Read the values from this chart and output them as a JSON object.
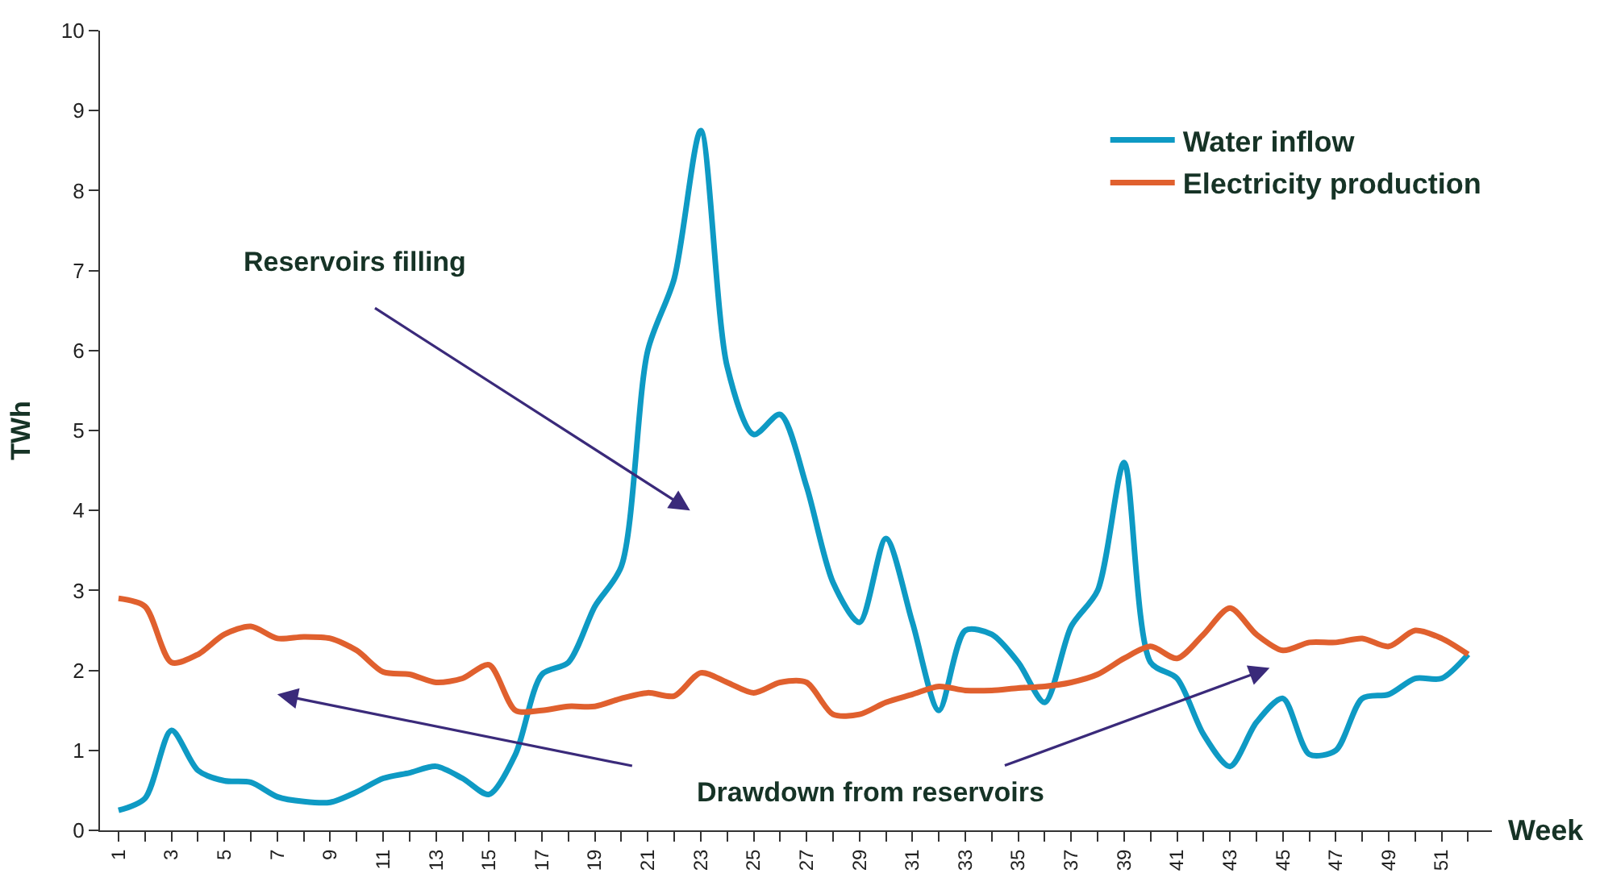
{
  "chart_data": {
    "type": "line",
    "xlabel": "Week",
    "ylabel": "TWh",
    "x": [
      1,
      2,
      3,
      4,
      5,
      6,
      7,
      8,
      9,
      10,
      11,
      12,
      13,
      14,
      15,
      16,
      17,
      18,
      19,
      20,
      21,
      22,
      23,
      24,
      25,
      26,
      27,
      28,
      29,
      30,
      31,
      32,
      33,
      34,
      35,
      36,
      37,
      38,
      39,
      40,
      41,
      42,
      43,
      44,
      45,
      46,
      47,
      48,
      49,
      50,
      51,
      52
    ],
    "xlim": [
      0.3,
      52.9
    ],
    "xticks": [
      1,
      {
        "value": 2,
        "label": null
      },
      3,
      {
        "value": 4,
        "label": null
      },
      5,
      {
        "value": 6,
        "label": null
      },
      7,
      {
        "value": 8,
        "label": null
      },
      9,
      {
        "value": 10,
        "label": null
      },
      11,
      {
        "value": 12,
        "label": null
      },
      13,
      {
        "value": 14,
        "label": null
      },
      15,
      {
        "value": 16,
        "label": null
      },
      17,
      {
        "value": 18,
        "label": null
      },
      19,
      {
        "value": 20,
        "label": null
      },
      21,
      {
        "value": 22,
        "label": null
      },
      23,
      {
        "value": 24,
        "label": null
      },
      25,
      {
        "value": 26,
        "label": null
      },
      27,
      {
        "value": 28,
        "label": null
      },
      29,
      {
        "value": 30,
        "label": null
      },
      31,
      {
        "value": 32,
        "label": null
      },
      33,
      {
        "value": 34,
        "label": null
      },
      35,
      {
        "value": 36,
        "label": null
      },
      37,
      {
        "value": 38,
        "label": null
      },
      39,
      {
        "value": 40,
        "label": null
      },
      41,
      {
        "value": 42,
        "label": null
      },
      43,
      {
        "value": 44,
        "label": null
      },
      45,
      {
        "value": 46,
        "label": null
      },
      47,
      {
        "value": 48,
        "label": null
      },
      49,
      {
        "value": 50,
        "label": null
      },
      51,
      {
        "value": 52,
        "label": null
      }
    ],
    "ylim": [
      0,
      10
    ],
    "yticks": [
      0,
      1,
      2,
      3,
      4,
      5,
      6,
      7,
      8,
      9,
      10
    ],
    "legend": "top right",
    "marker": "none",
    "line_style": "solid",
    "series": [
      {
        "name": "Water inflow",
        "color": "#0e9ac4",
        "values": [
          0.25,
          0.4,
          1.25,
          0.75,
          0.62,
          0.6,
          0.42,
          0.36,
          0.35,
          0.48,
          0.65,
          0.72,
          0.8,
          0.65,
          0.45,
          0.95,
          1.95,
          2.1,
          2.8,
          3.3,
          6.0,
          6.9,
          8.75,
          5.8,
          4.95,
          5.2,
          4.3,
          3.1,
          2.6,
          3.65,
          2.6,
          1.5,
          2.5,
          2.45,
          2.1,
          1.6,
          2.55,
          3.0,
          4.6,
          2.1,
          1.9,
          1.2,
          0.8,
          1.35,
          1.65,
          0.95,
          1.0,
          1.65,
          1.7,
          1.9,
          1.9,
          2.2
        ]
      },
      {
        "name": "Electricity production",
        "color": "#e0602e",
        "values": [
          2.9,
          2.8,
          2.1,
          2.2,
          2.45,
          2.55,
          2.4,
          2.42,
          2.4,
          2.25,
          1.98,
          1.95,
          1.85,
          1.9,
          2.07,
          1.5,
          1.5,
          1.55,
          1.55,
          1.65,
          1.72,
          1.68,
          1.97,
          1.85,
          1.72,
          1.85,
          1.85,
          1.45,
          1.45,
          1.6,
          1.7,
          1.8,
          1.75,
          1.75,
          1.78,
          1.8,
          1.85,
          1.95,
          2.15,
          2.3,
          2.15,
          2.45,
          2.78,
          2.45,
          2.25,
          2.35,
          2.35,
          2.4,
          2.3,
          2.5,
          2.4,
          2.2
        ]
      }
    ],
    "annotations": [
      "Reservoirs filling",
      "Drawdown from reservoirs"
    ]
  }
}
